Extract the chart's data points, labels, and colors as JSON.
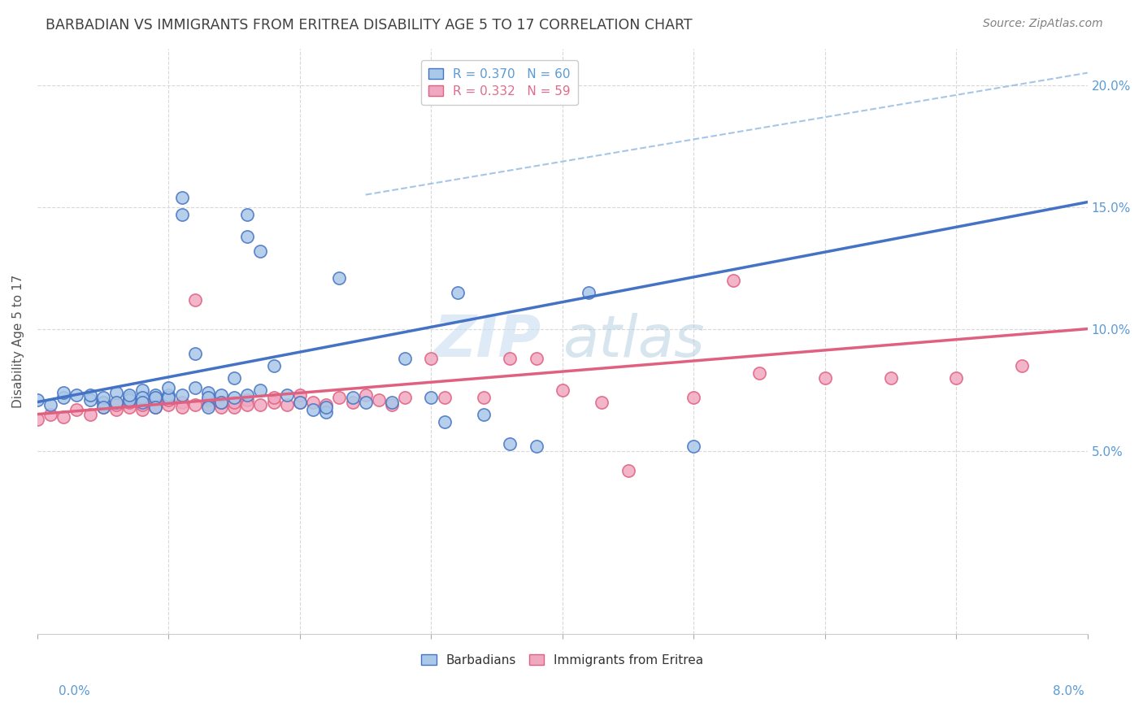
{
  "title": "BARBADIAN VS IMMIGRANTS FROM ERITREA DISABILITY AGE 5 TO 17 CORRELATION CHART",
  "source_text": "Source: ZipAtlas.com",
  "ylabel": "Disability Age 5 to 17",
  "legend_entries": [
    {
      "label": "R = 0.370   N = 60",
      "color": "#5b9bd5"
    },
    {
      "label": "R = 0.332   N = 59",
      "color": "#e06c8a"
    }
  ],
  "watermark_zip": "ZIP",
  "watermark_atlas": "atlas",
  "blue_scatter_x": [
    0.0,
    0.001,
    0.002,
    0.002,
    0.003,
    0.004,
    0.004,
    0.005,
    0.005,
    0.005,
    0.006,
    0.006,
    0.007,
    0.007,
    0.007,
    0.008,
    0.008,
    0.008,
    0.009,
    0.009,
    0.009,
    0.01,
    0.01,
    0.01,
    0.011,
    0.011,
    0.011,
    0.012,
    0.012,
    0.013,
    0.013,
    0.013,
    0.014,
    0.014,
    0.015,
    0.015,
    0.016,
    0.016,
    0.016,
    0.017,
    0.017,
    0.018,
    0.019,
    0.02,
    0.021,
    0.022,
    0.022,
    0.023,
    0.024,
    0.025,
    0.027,
    0.028,
    0.03,
    0.031,
    0.032,
    0.034,
    0.036,
    0.038,
    0.042,
    0.05
  ],
  "blue_scatter_y": [
    0.071,
    0.069,
    0.072,
    0.074,
    0.073,
    0.071,
    0.073,
    0.07,
    0.072,
    0.068,
    0.074,
    0.07,
    0.072,
    0.071,
    0.073,
    0.075,
    0.072,
    0.07,
    0.073,
    0.072,
    0.068,
    0.073,
    0.072,
    0.076,
    0.154,
    0.147,
    0.073,
    0.09,
    0.076,
    0.074,
    0.072,
    0.068,
    0.073,
    0.07,
    0.08,
    0.072,
    0.147,
    0.138,
    0.073,
    0.132,
    0.075,
    0.085,
    0.073,
    0.07,
    0.067,
    0.066,
    0.068,
    0.121,
    0.072,
    0.07,
    0.07,
    0.088,
    0.072,
    0.062,
    0.115,
    0.065,
    0.053,
    0.052,
    0.115,
    0.052
  ],
  "pink_scatter_x": [
    0.0,
    0.001,
    0.002,
    0.003,
    0.004,
    0.005,
    0.005,
    0.006,
    0.006,
    0.007,
    0.007,
    0.008,
    0.008,
    0.009,
    0.009,
    0.009,
    0.01,
    0.01,
    0.011,
    0.011,
    0.012,
    0.012,
    0.013,
    0.013,
    0.014,
    0.014,
    0.015,
    0.015,
    0.016,
    0.016,
    0.017,
    0.018,
    0.018,
    0.019,
    0.02,
    0.02,
    0.021,
    0.022,
    0.023,
    0.024,
    0.025,
    0.026,
    0.027,
    0.028,
    0.03,
    0.031,
    0.034,
    0.036,
    0.038,
    0.04,
    0.043,
    0.045,
    0.05,
    0.053,
    0.055,
    0.06,
    0.065,
    0.07,
    0.075
  ],
  "pink_scatter_y": [
    0.063,
    0.065,
    0.064,
    0.067,
    0.065,
    0.068,
    0.07,
    0.067,
    0.069,
    0.068,
    0.07,
    0.067,
    0.069,
    0.07,
    0.068,
    0.072,
    0.069,
    0.071,
    0.07,
    0.068,
    0.069,
    0.112,
    0.069,
    0.071,
    0.068,
    0.07,
    0.068,
    0.07,
    0.071,
    0.069,
    0.069,
    0.07,
    0.072,
    0.069,
    0.07,
    0.073,
    0.07,
    0.069,
    0.072,
    0.07,
    0.073,
    0.071,
    0.069,
    0.072,
    0.088,
    0.072,
    0.072,
    0.088,
    0.088,
    0.075,
    0.07,
    0.042,
    0.072,
    0.12,
    0.082,
    0.08,
    0.08,
    0.08,
    0.085
  ],
  "blue_line_x0": 0.0,
  "blue_line_x1": 0.08,
  "blue_line_y0": 0.07,
  "blue_line_y1": 0.152,
  "pink_line_x0": 0.0,
  "pink_line_x1": 0.08,
  "pink_line_y0": 0.065,
  "pink_line_y1": 0.1,
  "ref_line_x0": 0.025,
  "ref_line_x1": 0.08,
  "ref_line_y0": 0.155,
  "ref_line_y1": 0.205,
  "scatter_color_blue": "#aac8e8",
  "scatter_color_pink": "#f0a8c0",
  "line_color_blue": "#4472c4",
  "line_color_pink": "#e06080",
  "ref_line_color": "#90b8e0",
  "title_color": "#404040",
  "source_color": "#808080",
  "axis_label_color": "#5b9bd5",
  "background_color": "#ffffff",
  "grid_color": "#d8d8d8",
  "xlim": [
    0.0,
    0.08
  ],
  "ylim": [
    -0.025,
    0.215
  ],
  "ytick_positions": [
    0.05,
    0.1,
    0.15,
    0.2
  ],
  "ytick_labels": [
    "5.0%",
    "10.0%",
    "15.0%",
    "20.0%"
  ],
  "xtick_positions": [
    0.0,
    0.01,
    0.02,
    0.03,
    0.04,
    0.05,
    0.06,
    0.07,
    0.08
  ],
  "title_fontsize": 12.5,
  "source_fontsize": 10,
  "axis_label_fontsize": 11,
  "tick_fontsize": 11,
  "legend_fontsize": 11,
  "watermark_fontsize_zip": 52,
  "watermark_fontsize_atlas": 52,
  "watermark_color_zip": "#c8dff0",
  "watermark_color_atlas": "#b0cce0"
}
